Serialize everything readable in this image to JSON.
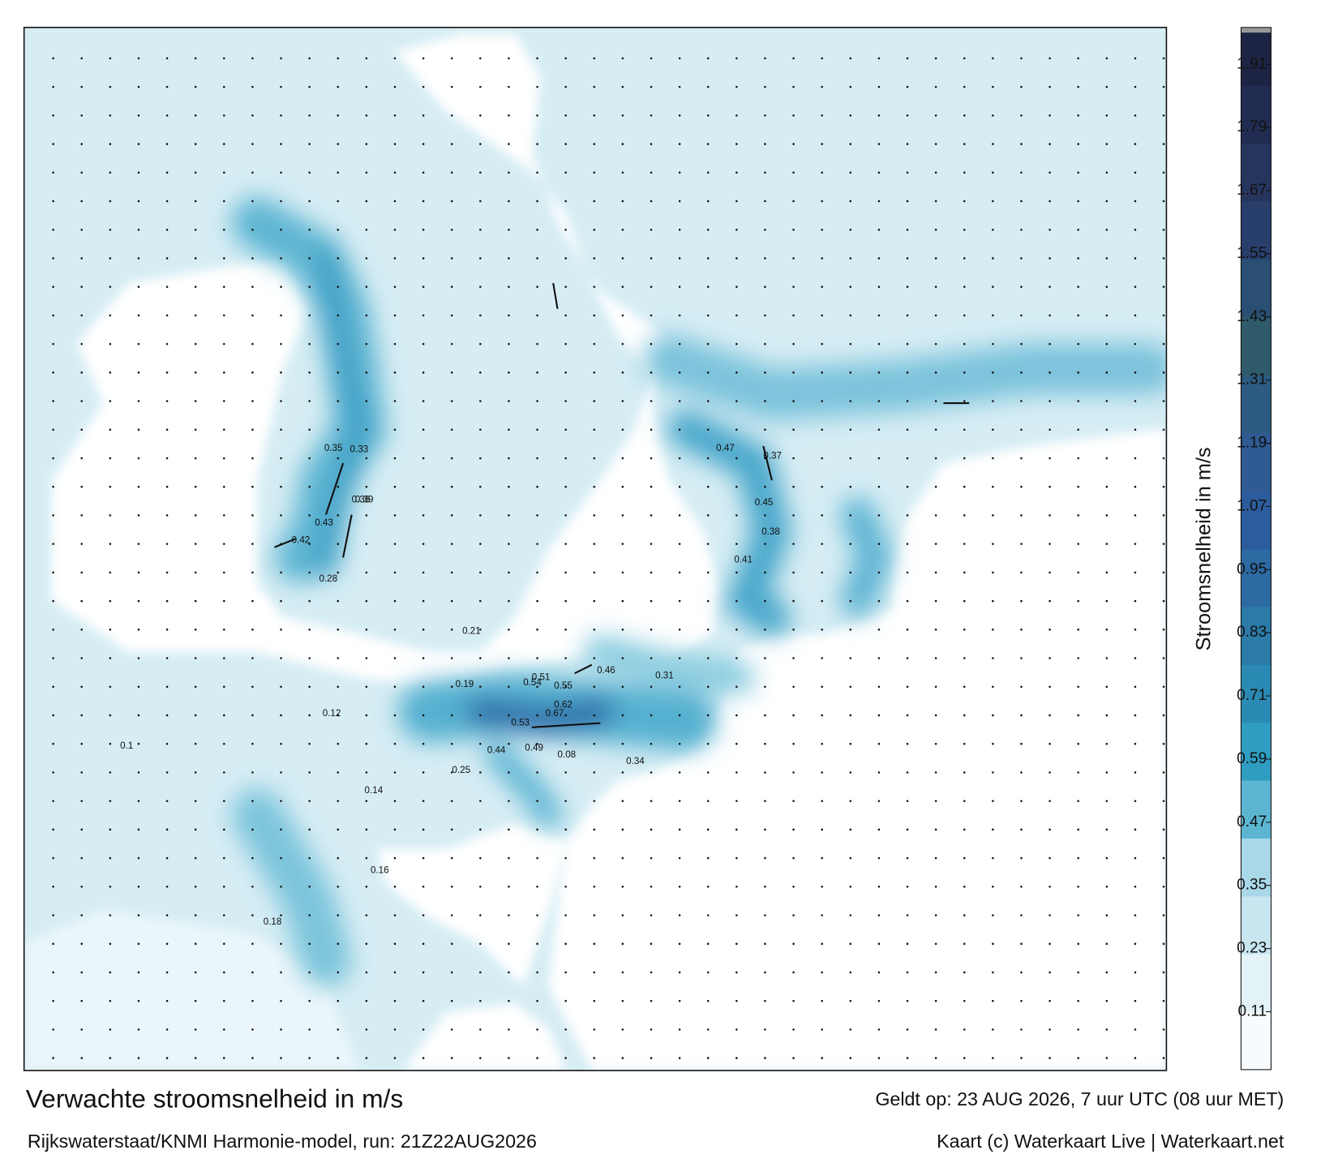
{
  "header": {
    "title": "Verwachte stroomsnelheid in m/s",
    "subtitle": "Rijkswaterstaat/KNMI Harmonie-model, run: 21Z22AUG2026",
    "valid": "Geldt op: 23 AUG 2026, 7 uur UTC (08 uur MET)",
    "credit": "Kaart (c) Waterkaart Live | Waterkaart.net"
  },
  "map": {
    "current_labels": [
      0.67,
      0.62,
      0.55,
      0.51,
      0.46,
      0.54,
      0.53,
      0.49,
      0.47,
      0.43,
      0.45,
      0.41,
      0.42,
      0.39,
      0.36,
      0.35,
      0.37,
      0.33,
      0.34,
      0.44,
      0.38,
      0.31,
      0.28,
      0.25,
      0.21,
      0.19,
      0.18,
      0.16,
      0.14,
      0.12,
      0.1,
      0.08
    ]
  },
  "colorbar": {
    "label": "Stroomsnelheid in m/s",
    "lim": [
      0,
      1.98
    ],
    "ticks": [
      0.11,
      0.23,
      0.35,
      0.47,
      0.59,
      0.71,
      0.83,
      0.95,
      1.07,
      1.19,
      1.31,
      1.43,
      1.55,
      1.67,
      1.79,
      1.91
    ],
    "colors": [
      "#f7fbfd",
      "#e3f2f7",
      "#c8e6f0",
      "#a9d8e8",
      "#5cb6d2",
      "#2f9dc2",
      "#2a8ab4",
      "#2b7aa8",
      "#2c6aa3",
      "#2d5c9c",
      "#2f5a92",
      "#2c5a80",
      "#2e5a6a",
      "#2a4f72",
      "#283f6c",
      "#26355e",
      "#222c52",
      "#1d2443"
    ]
  }
}
